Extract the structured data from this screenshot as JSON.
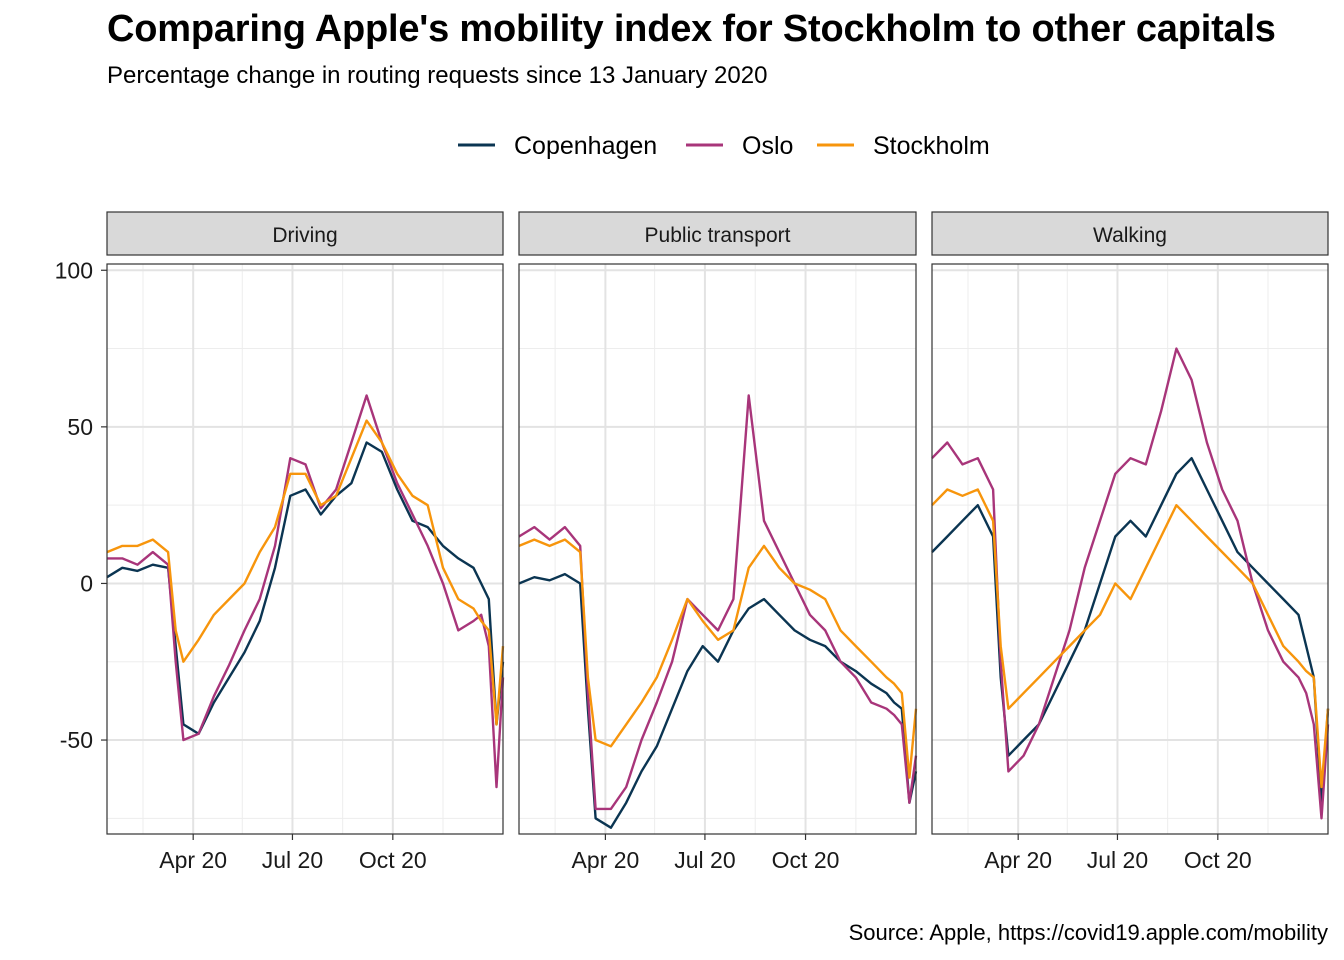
{
  "title": "Comparing Apple's mobility index for Stockholm to other capitals",
  "subtitle": "Percentage change in routing requests since 13 January 2020",
  "caption": "Source: Apple, https://covid19.apple.com/mobility",
  "chart_data": {
    "type": "line",
    "title": "Comparing Apple's mobility index for Stockholm to other capitals",
    "subtitle": "Percentage change in routing requests since 13 January 2020",
    "xlabel": "",
    "ylabel": "",
    "x_range": [
      "2020-01-13",
      "2021-01-10"
    ],
    "ylim": [
      -80,
      102
    ],
    "y_ticks": [
      -50,
      0,
      50,
      100
    ],
    "x_ticks": [
      {
        "date": "2020-04-01",
        "label": "Apr 20"
      },
      {
        "date": "2020-07-01",
        "label": "Jul 20"
      },
      {
        "date": "2020-10-01",
        "label": "Oct 20"
      }
    ],
    "grid": true,
    "legend_position": "top",
    "colors": {
      "Copenhagen": "#0b3552",
      "Oslo": "#a8357a",
      "Stockholm": "#f7950c"
    },
    "facets": [
      {
        "name": "Driving",
        "series": [
          {
            "name": "Copenhagen",
            "dates": [
              "2020-01-13",
              "2020-01-27",
              "2020-02-10",
              "2020-02-24",
              "2020-03-09",
              "2020-03-16",
              "2020-03-23",
              "2020-04-06",
              "2020-04-20",
              "2020-05-04",
              "2020-05-18",
              "2020-06-01",
              "2020-06-15",
              "2020-06-29",
              "2020-07-13",
              "2020-07-27",
              "2020-08-10",
              "2020-08-24",
              "2020-09-07",
              "2020-09-21",
              "2020-10-05",
              "2020-10-19",
              "2020-11-02",
              "2020-11-16",
              "2020-11-30",
              "2020-12-14",
              "2020-12-21",
              "2020-12-28",
              "2021-01-04",
              "2021-01-10"
            ],
            "values": [
              2,
              5,
              4,
              6,
              5,
              -20,
              -45,
              -48,
              -38,
              -30,
              -22,
              -12,
              5,
              28,
              30,
              22,
              28,
              32,
              45,
              42,
              30,
              20,
              18,
              12,
              8,
              5,
              0,
              -5,
              -45,
              -25
            ]
          },
          {
            "name": "Oslo",
            "dates": [
              "2020-01-13",
              "2020-01-27",
              "2020-02-10",
              "2020-02-24",
              "2020-03-09",
              "2020-03-16",
              "2020-03-23",
              "2020-04-06",
              "2020-04-20",
              "2020-05-04",
              "2020-05-18",
              "2020-06-01",
              "2020-06-15",
              "2020-06-29",
              "2020-07-13",
              "2020-07-27",
              "2020-08-10",
              "2020-08-24",
              "2020-09-07",
              "2020-09-21",
              "2020-10-05",
              "2020-10-19",
              "2020-11-02",
              "2020-11-16",
              "2020-11-30",
              "2020-12-14",
              "2020-12-21",
              "2020-12-28",
              "2021-01-04",
              "2021-01-10"
            ],
            "values": [
              8,
              8,
              6,
              10,
              6,
              -25,
              -50,
              -48,
              -36,
              -26,
              -15,
              -5,
              12,
              40,
              38,
              24,
              30,
              45,
              60,
              45,
              32,
              22,
              12,
              0,
              -15,
              -12,
              -10,
              -20,
              -65,
              -30
            ]
          },
          {
            "name": "Stockholm",
            "dates": [
              "2020-01-13",
              "2020-01-27",
              "2020-02-10",
              "2020-02-24",
              "2020-03-09",
              "2020-03-16",
              "2020-03-23",
              "2020-04-06",
              "2020-04-20",
              "2020-05-04",
              "2020-05-18",
              "2020-06-01",
              "2020-06-15",
              "2020-06-29",
              "2020-07-13",
              "2020-07-27",
              "2020-08-10",
              "2020-08-24",
              "2020-09-07",
              "2020-09-21",
              "2020-10-05",
              "2020-10-19",
              "2020-11-02",
              "2020-11-16",
              "2020-11-30",
              "2020-12-14",
              "2020-12-21",
              "2020-12-28",
              "2021-01-04",
              "2021-01-10"
            ],
            "values": [
              10,
              12,
              12,
              14,
              10,
              -15,
              -25,
              -18,
              -10,
              -5,
              0,
              10,
              18,
              35,
              35,
              25,
              28,
              40,
              52,
              45,
              35,
              28,
              25,
              5,
              -5,
              -8,
              -12,
              -15,
              -45,
              -20
            ]
          }
        ]
      },
      {
        "name": "Public transport",
        "series": [
          {
            "name": "Copenhagen",
            "dates": [
              "2020-01-13",
              "2020-01-27",
              "2020-02-10",
              "2020-02-24",
              "2020-03-09",
              "2020-03-16",
              "2020-03-23",
              "2020-04-06",
              "2020-04-20",
              "2020-05-04",
              "2020-05-18",
              "2020-06-01",
              "2020-06-15",
              "2020-06-29",
              "2020-07-13",
              "2020-07-27",
              "2020-08-10",
              "2020-08-24",
              "2020-09-07",
              "2020-09-21",
              "2020-10-05",
              "2020-10-19",
              "2020-11-02",
              "2020-11-16",
              "2020-11-30",
              "2020-12-14",
              "2020-12-21",
              "2020-12-28",
              "2021-01-04",
              "2021-01-10"
            ],
            "values": [
              0,
              2,
              1,
              3,
              0,
              -40,
              -75,
              -78,
              -70,
              -60,
              -52,
              -40,
              -28,
              -20,
              -25,
              -15,
              -8,
              -5,
              -10,
              -15,
              -18,
              -20,
              -25,
              -28,
              -32,
              -35,
              -38,
              -40,
              -70,
              -60
            ]
          },
          {
            "name": "Oslo",
            "dates": [
              "2020-01-13",
              "2020-01-27",
              "2020-02-10",
              "2020-02-24",
              "2020-03-09",
              "2020-03-16",
              "2020-03-23",
              "2020-04-06",
              "2020-04-20",
              "2020-05-04",
              "2020-05-18",
              "2020-06-01",
              "2020-06-15",
              "2020-06-29",
              "2020-07-13",
              "2020-07-27",
              "2020-08-10",
              "2020-08-24",
              "2020-09-07",
              "2020-09-21",
              "2020-10-05",
              "2020-10-19",
              "2020-11-02",
              "2020-11-16",
              "2020-11-30",
              "2020-12-14",
              "2020-12-21",
              "2020-12-28",
              "2021-01-04",
              "2021-01-10"
            ],
            "values": [
              15,
              18,
              14,
              18,
              12,
              -35,
              -72,
              -72,
              -65,
              -50,
              -38,
              -25,
              -5,
              -10,
              -15,
              -5,
              60,
              20,
              10,
              0,
              -10,
              -15,
              -25,
              -30,
              -38,
              -40,
              -42,
              -45,
              -70,
              -55
            ]
          },
          {
            "name": "Stockholm",
            "dates": [
              "2020-01-13",
              "2020-01-27",
              "2020-02-10",
              "2020-02-24",
              "2020-03-09",
              "2020-03-16",
              "2020-03-23",
              "2020-04-06",
              "2020-04-20",
              "2020-05-04",
              "2020-05-18",
              "2020-06-01",
              "2020-06-15",
              "2020-06-29",
              "2020-07-13",
              "2020-07-27",
              "2020-08-10",
              "2020-08-24",
              "2020-09-07",
              "2020-09-21",
              "2020-10-05",
              "2020-10-19",
              "2020-11-02",
              "2020-11-16",
              "2020-11-30",
              "2020-12-14",
              "2020-12-21",
              "2020-12-28",
              "2021-01-04",
              "2021-01-10"
            ],
            "values": [
              12,
              14,
              12,
              14,
              10,
              -30,
              -50,
              -52,
              -45,
              -38,
              -30,
              -18,
              -5,
              -12,
              -18,
              -15,
              5,
              12,
              5,
              0,
              -2,
              -5,
              -15,
              -20,
              -25,
              -30,
              -32,
              -35,
              -62,
              -40
            ]
          }
        ]
      },
      {
        "name": "Walking",
        "series": [
          {
            "name": "Copenhagen",
            "dates": [
              "2020-01-13",
              "2020-01-27",
              "2020-02-10",
              "2020-02-24",
              "2020-03-09",
              "2020-03-16",
              "2020-03-23",
              "2020-04-06",
              "2020-04-20",
              "2020-05-04",
              "2020-05-18",
              "2020-06-01",
              "2020-06-15",
              "2020-06-29",
              "2020-07-13",
              "2020-07-27",
              "2020-08-10",
              "2020-08-24",
              "2020-09-07",
              "2020-09-21",
              "2020-10-05",
              "2020-10-19",
              "2020-11-02",
              "2020-11-16",
              "2020-11-30",
              "2020-12-14",
              "2020-12-21",
              "2020-12-28",
              "2021-01-04",
              "2021-01-10"
            ],
            "values": [
              10,
              15,
              20,
              25,
              15,
              -30,
              -55,
              -50,
              -45,
              -35,
              -25,
              -15,
              0,
              15,
              20,
              15,
              25,
              35,
              40,
              30,
              20,
              10,
              5,
              0,
              -5,
              -10,
              -20,
              -30,
              -70,
              -40
            ]
          },
          {
            "name": "Oslo",
            "dates": [
              "2020-01-13",
              "2020-01-27",
              "2020-02-10",
              "2020-02-24",
              "2020-03-09",
              "2020-03-16",
              "2020-03-23",
              "2020-04-06",
              "2020-04-20",
              "2020-05-04",
              "2020-05-18",
              "2020-06-01",
              "2020-06-15",
              "2020-06-29",
              "2020-07-13",
              "2020-07-27",
              "2020-08-10",
              "2020-08-24",
              "2020-09-07",
              "2020-09-21",
              "2020-10-05",
              "2020-10-19",
              "2020-11-02",
              "2020-11-16",
              "2020-11-30",
              "2020-12-14",
              "2020-12-21",
              "2020-12-28",
              "2021-01-04",
              "2021-01-10"
            ],
            "values": [
              40,
              45,
              38,
              40,
              30,
              -25,
              -60,
              -55,
              -45,
              -30,
              -15,
              5,
              20,
              35,
              40,
              38,
              55,
              75,
              65,
              45,
              30,
              20,
              0,
              -15,
              -25,
              -30,
              -35,
              -45,
              -75,
              -45
            ]
          },
          {
            "name": "Stockholm",
            "dates": [
              "2020-01-13",
              "2020-01-27",
              "2020-02-10",
              "2020-02-24",
              "2020-03-09",
              "2020-03-16",
              "2020-03-23",
              "2020-04-06",
              "2020-04-20",
              "2020-05-04",
              "2020-05-18",
              "2020-06-01",
              "2020-06-15",
              "2020-06-29",
              "2020-07-13",
              "2020-07-27",
              "2020-08-10",
              "2020-08-24",
              "2020-09-07",
              "2020-09-21",
              "2020-10-05",
              "2020-10-19",
              "2020-11-02",
              "2020-11-16",
              "2020-11-30",
              "2020-12-14",
              "2020-12-21",
              "2020-12-28",
              "2021-01-04",
              "2021-01-10"
            ],
            "values": [
              25,
              30,
              28,
              30,
              20,
              -20,
              -40,
              -35,
              -30,
              -25,
              -20,
              -15,
              -10,
              0,
              -5,
              5,
              15,
              25,
              20,
              15,
              10,
              5,
              0,
              -10,
              -20,
              -25,
              -28,
              -30,
              -65,
              -40
            ]
          }
        ]
      }
    ]
  }
}
